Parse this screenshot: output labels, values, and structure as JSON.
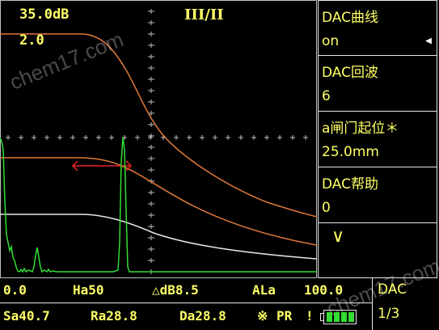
{
  "screen": {
    "top_gain": "35.0dB",
    "ref_level": "2.0",
    "mode": "III/II",
    "watermark": "chem17.com"
  },
  "menu": {
    "items": [
      {
        "label": "DAC曲线",
        "value": "on"
      },
      {
        "label": "DAC回波",
        "value": "6"
      },
      {
        "label": "a闸门起位＊",
        "value": "25.0mm"
      },
      {
        "label": "DAC帮助",
        "value": "0"
      }
    ],
    "down_symbol": "∨"
  },
  "status": {
    "row1": {
      "range_start": "0.0",
      "ha": "Ha50",
      "ddb": "△dB8.5",
      "ala": "ALa",
      "ala_value": "100.0"
    },
    "row2": {
      "sa": "Sa40.7",
      "ra": "Ra28.8",
      "da": "Da28.8",
      "marker": "※",
      "pr": "PR"
    }
  },
  "page_box": {
    "label": "DAC",
    "page": "1/3"
  },
  "colors": {
    "text": "#ffff66",
    "grid": "#bfbfbf",
    "dac_curve": "#e07a3a",
    "waveform": "#33dd33",
    "gate": "#ee2222",
    "ref_curve": "#e8e8e8",
    "battery": "#33dd33"
  }
}
